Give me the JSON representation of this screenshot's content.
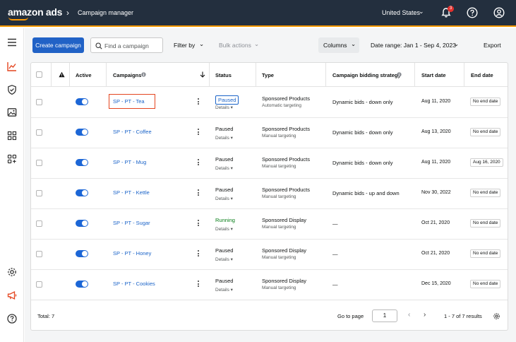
{
  "header": {
    "logo": "amazon ads",
    "breadcrumb": "Campaign manager",
    "country": "United States",
    "notifications_count": "3"
  },
  "toolbar": {
    "create_label": "Create campaign",
    "search_placeholder": "Find a campaign",
    "filter_label": "Filter by",
    "bulk_label": "Bulk actions",
    "columns_label": "Columns",
    "date_range_label": "Date range: Jan 1 - Sep 4, 2023",
    "export_label": "Export"
  },
  "table": {
    "headers": {
      "active": "Active",
      "campaigns": "Campaigns",
      "status": "Status",
      "type": "Type",
      "bidding": "Campaign bidding strategy",
      "start": "Start date",
      "end": "End date"
    },
    "details_label": "Details",
    "rows": [
      {
        "name": "SP - PT - Tea",
        "status": "Paused",
        "type": "Sponsored Products",
        "targeting": "Automatic targeting",
        "bidding": "Dynamic bids - down only",
        "start": "Aug 11, 2020",
        "end": "No end date"
      },
      {
        "name": "SP - PT - Coffee",
        "status": "Paused",
        "type": "Sponsored Products",
        "targeting": "Manual targeting",
        "bidding": "Dynamic bids - down only",
        "start": "Aug 13, 2020",
        "end": "No end date"
      },
      {
        "name": "SP - PT - Mug",
        "status": "Paused",
        "type": "Sponsored Products",
        "targeting": "Manual targeting",
        "bidding": "Dynamic bids - down only",
        "start": "Aug 11, 2020",
        "end": "Aug 16, 2020"
      },
      {
        "name": "SP - PT - Kettle",
        "status": "Paused",
        "type": "Sponsored Products",
        "targeting": "Manual targeting",
        "bidding": "Dynamic bids - up and down",
        "start": "Nov 30, 2022",
        "end": "No end date"
      },
      {
        "name": "SP - PT - Sugar",
        "status": "Running",
        "type": "Sponsored Display",
        "targeting": "Manual targeting",
        "bidding": "—",
        "start": "Oct 21, 2020",
        "end": "No end date"
      },
      {
        "name": "SP - PT - Honey",
        "status": "Paused",
        "type": "Sponsored Display",
        "targeting": "Manual targeting",
        "bidding": "—",
        "start": "Oct 21, 2020",
        "end": "No end date"
      },
      {
        "name": "SP - PT - Cookies",
        "status": "Paused",
        "type": "Sponsored Display",
        "targeting": "Manual targeting",
        "bidding": "—",
        "start": "Dec 15, 2020",
        "end": "No end date"
      }
    ]
  },
  "footer": {
    "total_label": "Total: 7",
    "goto_label": "Go to page",
    "page_value": "1",
    "results_label": "1 - 7 of 7 results"
  },
  "colors": {
    "header_bg": "#232f3e",
    "accent": "#ff9900",
    "primary": "#2162c6",
    "running": "#067d17",
    "highlight": "#e4451f"
  }
}
